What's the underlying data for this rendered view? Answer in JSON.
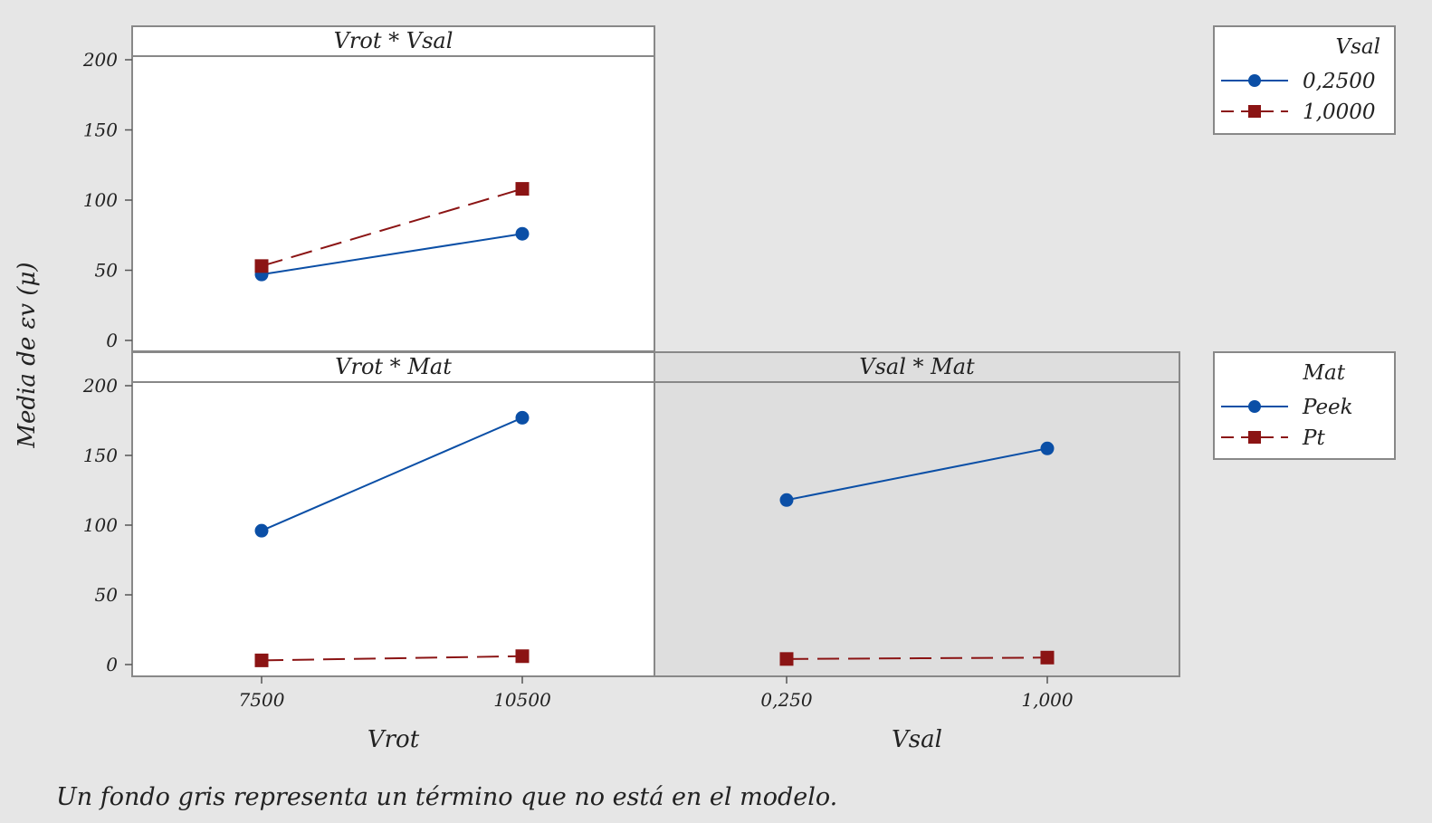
{
  "note": "Un fondo gris representa un término que no está en el modelo.",
  "ylabel": "Media de εv (μ)",
  "colors": {
    "blue": "#0b4fa6",
    "red": "#8b1414",
    "panel": "#ffffff",
    "panel_gray": "#dedede",
    "frame": "#888888",
    "background": "#e6e6e6"
  },
  "legends": [
    {
      "title": "Vsal",
      "entries": [
        {
          "label": "0,2500",
          "series": 0
        },
        {
          "label": "1,0000",
          "series": 1
        }
      ]
    },
    {
      "title": "Mat",
      "entries": [
        {
          "label": "Peek",
          "series": 0
        },
        {
          "label": "Pt",
          "series": 1
        }
      ]
    }
  ],
  "chart_data": [
    {
      "type": "line",
      "title": "Vrot * Vsal",
      "xlabel": "",
      "x_categories": [
        "7500",
        "10500"
      ],
      "ylim": [
        0,
        200
      ],
      "yticks": [
        0,
        50,
        100,
        150,
        200
      ],
      "in_model": true,
      "series": [
        {
          "name": "0,2500",
          "values": [
            47,
            76
          ],
          "marker": "circle",
          "dash": "solid"
        },
        {
          "name": "1,0000",
          "values": [
            53,
            108
          ],
          "marker": "square",
          "dash": "dashed"
        }
      ]
    },
    {
      "type": "line",
      "title": "Vrot * Mat",
      "xlabel": "Vrot",
      "x_categories": [
        "7500",
        "10500"
      ],
      "ylim": [
        0,
        200
      ],
      "yticks": [
        0,
        50,
        100,
        150,
        200
      ],
      "in_model": true,
      "series": [
        {
          "name": "Peek",
          "values": [
            96,
            177
          ],
          "marker": "circle",
          "dash": "solid"
        },
        {
          "name": "Pt",
          "values": [
            3,
            6
          ],
          "marker": "square",
          "dash": "dashed"
        }
      ]
    },
    {
      "type": "line",
      "title": "Vsal * Mat",
      "xlabel": "Vsal",
      "x_categories": [
        "0,250",
        "1,000"
      ],
      "ylim": [
        0,
        200
      ],
      "yticks": [],
      "in_model": false,
      "series": [
        {
          "name": "Peek",
          "values": [
            118,
            155
          ],
          "marker": "circle",
          "dash": "solid"
        },
        {
          "name": "Pt",
          "values": [
            4,
            5
          ],
          "marker": "square",
          "dash": "dashed"
        }
      ]
    }
  ]
}
